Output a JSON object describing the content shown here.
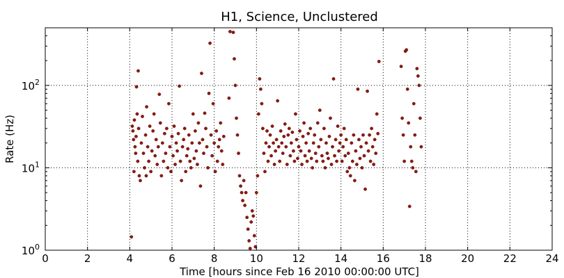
{
  "chart_data": {
    "type": "scatter",
    "title": "H1, Science, Unclustered",
    "xlabel": "Time [hours since Feb 16 2010 00:00:00 UTC]",
    "ylabel": "Rate (Hz)",
    "xlim": [
      0,
      24
    ],
    "ylim": [
      1,
      500
    ],
    "yscale": "log",
    "grid": true,
    "x_ticks": [
      0,
      2,
      4,
      6,
      8,
      10,
      12,
      14,
      16,
      18,
      20,
      22,
      24
    ],
    "x_tick_labels": [
      "0",
      "2",
      "4",
      "6",
      "8",
      "10",
      "12",
      "14",
      "16",
      "18",
      "20",
      "22",
      "24"
    ],
    "y_ticks": [
      1,
      10,
      100
    ],
    "y_tick_labels": [
      {
        "base": "10",
        "exp": "0"
      },
      {
        "base": "10",
        "exp": "1"
      },
      {
        "base": "10",
        "exp": "2"
      }
    ],
    "marker_color": "#8b1a10",
    "series": [
      {
        "points": [
          [
            4.08,
            1.45
          ],
          [
            4.12,
            32
          ],
          [
            4.15,
            28
          ],
          [
            4.18,
            22
          ],
          [
            4.2,
            9
          ],
          [
            4.22,
            38
          ],
          [
            4.25,
            18
          ],
          [
            4.28,
            15
          ],
          [
            4.3,
            24
          ],
          [
            4.32,
            96
          ],
          [
            4.35,
            45
          ],
          [
            4.38,
            12
          ],
          [
            4.4,
            150
          ],
          [
            4.42,
            30
          ],
          [
            4.45,
            8
          ],
          [
            4.5,
            7
          ],
          [
            4.55,
            20
          ],
          [
            4.6,
            42
          ],
          [
            4.65,
            15
          ],
          [
            4.7,
            10
          ],
          [
            4.75,
            25
          ],
          [
            4.78,
            8
          ],
          [
            4.8,
            55
          ],
          [
            4.85,
            18
          ],
          [
            4.9,
            12
          ],
          [
            4.95,
            32
          ],
          [
            5.0,
            9
          ],
          [
            5.05,
            16
          ],
          [
            5.1,
            28
          ],
          [
            5.15,
            45
          ],
          [
            5.2,
            14
          ],
          [
            5.25,
            22
          ],
          [
            5.3,
            11
          ],
          [
            5.35,
            18
          ],
          [
            5.4,
            78
          ],
          [
            5.45,
            35
          ],
          [
            5.5,
            8
          ],
          [
            5.55,
            20
          ],
          [
            5.6,
            12
          ],
          [
            5.65,
            26
          ],
          [
            5.7,
            15
          ],
          [
            5.75,
            30
          ],
          [
            5.8,
            10
          ],
          [
            5.85,
            60
          ],
          [
            5.9,
            18
          ],
          [
            5.95,
            9
          ],
          [
            6.0,
            24
          ],
          [
            6.05,
            14
          ],
          [
            6.1,
            32
          ],
          [
            6.15,
            11
          ],
          [
            6.2,
            20
          ],
          [
            6.25,
            16
          ],
          [
            6.3,
            26
          ],
          [
            6.35,
            98
          ],
          [
            6.4,
            12
          ],
          [
            6.45,
            7
          ],
          [
            6.5,
            18
          ],
          [
            6.55,
            22
          ],
          [
            6.6,
            30
          ],
          [
            6.65,
            9
          ],
          [
            6.7,
            14
          ],
          [
            6.75,
            17
          ],
          [
            6.8,
            25
          ],
          [
            6.85,
            12
          ],
          [
            6.9,
            10
          ],
          [
            6.95,
            20
          ],
          [
            7.0,
            45
          ],
          [
            7.05,
            13
          ],
          [
            7.1,
            28
          ],
          [
            7.15,
            16
          ],
          [
            7.2,
            11
          ],
          [
            7.25,
            35
          ],
          [
            7.3,
            20
          ],
          [
            7.35,
            6
          ],
          [
            7.4,
            140
          ],
          [
            7.45,
            22
          ],
          [
            7.5,
            15
          ],
          [
            7.55,
            46
          ],
          [
            7.6,
            30
          ],
          [
            7.65,
            18
          ],
          [
            7.7,
            10
          ],
          [
            7.75,
            80
          ],
          [
            7.8,
            325
          ],
          [
            7.85,
            25
          ],
          [
            7.9,
            14
          ],
          [
            7.95,
            60
          ],
          [
            8.0,
            20
          ],
          [
            8.05,
            9
          ],
          [
            8.1,
            28
          ],
          [
            8.15,
            12
          ],
          [
            8.2,
            18
          ],
          [
            8.25,
            22
          ],
          [
            8.3,
            35
          ],
          [
            8.35,
            16
          ],
          [
            8.4,
            11
          ],
          [
            8.45,
            24
          ],
          [
            8.7,
            70
          ],
          [
            8.75,
            450
          ],
          [
            8.9,
            440
          ],
          [
            8.95,
            210
          ],
          [
            9.0,
            100
          ],
          [
            9.05,
            40
          ],
          [
            9.1,
            25
          ],
          [
            9.15,
            15
          ],
          [
            9.2,
            8
          ],
          [
            9.25,
            6
          ],
          [
            9.3,
            5
          ],
          [
            9.35,
            4
          ],
          [
            9.4,
            7
          ],
          [
            9.45,
            3.5
          ],
          [
            9.5,
            5
          ],
          [
            9.55,
            2.5
          ],
          [
            9.6,
            1.8
          ],
          [
            9.65,
            1.3
          ],
          [
            9.7,
            1.05
          ],
          [
            9.75,
            2.2
          ],
          [
            9.8,
            3
          ],
          [
            9.85,
            2.6
          ],
          [
            9.9,
            1.5
          ],
          [
            9.95,
            1.1
          ],
          [
            10.0,
            5
          ],
          [
            10.05,
            8
          ],
          [
            10.1,
            45
          ],
          [
            10.15,
            120
          ],
          [
            10.2,
            90
          ],
          [
            10.25,
            60
          ],
          [
            10.3,
            30
          ],
          [
            10.35,
            15
          ],
          [
            10.4,
            9
          ],
          [
            10.45,
            20
          ],
          [
            10.5,
            28
          ],
          [
            10.55,
            12
          ],
          [
            10.6,
            18
          ],
          [
            10.65,
            25
          ],
          [
            10.7,
            14
          ],
          [
            10.75,
            32
          ],
          [
            10.8,
            20
          ],
          [
            10.85,
            11
          ],
          [
            10.9,
            16
          ],
          [
            10.95,
            22
          ],
          [
            11.0,
            65
          ],
          [
            11.05,
            18
          ],
          [
            11.1,
            12
          ],
          [
            11.15,
            28
          ],
          [
            11.2,
            20
          ],
          [
            11.25,
            15
          ],
          [
            11.3,
            24
          ],
          [
            11.35,
            34
          ],
          [
            11.4,
            18
          ],
          [
            11.45,
            11
          ],
          [
            11.5,
            25
          ],
          [
            11.55,
            30
          ],
          [
            11.6,
            14
          ],
          [
            11.65,
            20
          ],
          [
            11.7,
            27
          ],
          [
            11.75,
            16
          ],
          [
            11.8,
            12
          ],
          [
            11.85,
            45
          ],
          [
            11.9,
            22
          ],
          [
            11.95,
            13
          ],
          [
            12.0,
            18
          ],
          [
            12.05,
            28
          ],
          [
            12.1,
            16
          ],
          [
            12.15,
            11
          ],
          [
            12.2,
            24
          ],
          [
            12.25,
            35
          ],
          [
            12.3,
            14
          ],
          [
            12.35,
            20
          ],
          [
            12.4,
            12
          ],
          [
            12.45,
            26
          ],
          [
            12.5,
            16
          ],
          [
            12.55,
            30
          ],
          [
            12.6,
            13
          ],
          [
            12.65,
            10
          ],
          [
            12.7,
            20
          ],
          [
            12.75,
            25
          ],
          [
            12.8,
            15
          ],
          [
            12.85,
            12
          ],
          [
            12.9,
            35
          ],
          [
            12.95,
            18
          ],
          [
            13.0,
            50
          ],
          [
            13.05,
            22
          ],
          [
            13.1,
            14
          ],
          [
            13.15,
            12
          ],
          [
            13.2,
            30
          ],
          [
            13.25,
            10
          ],
          [
            13.3,
            20
          ],
          [
            13.35,
            15
          ],
          [
            13.4,
            13
          ],
          [
            13.45,
            24
          ],
          [
            13.5,
            40
          ],
          [
            13.55,
            11
          ],
          [
            13.6,
            18
          ],
          [
            13.65,
            120
          ],
          [
            13.7,
            14
          ],
          [
            13.75,
            22
          ],
          [
            13.8,
            12
          ],
          [
            13.85,
            32
          ],
          [
            13.9,
            16
          ],
          [
            13.95,
            20
          ],
          [
            14.0,
            25
          ],
          [
            14.05,
            12
          ],
          [
            14.1,
            18
          ],
          [
            14.15,
            30
          ],
          [
            14.2,
            14
          ],
          [
            14.25,
            22
          ],
          [
            14.3,
            9
          ],
          [
            14.35,
            15
          ],
          [
            14.4,
            10
          ],
          [
            14.45,
            8
          ],
          [
            14.5,
            20
          ],
          [
            14.55,
            12
          ],
          [
            14.6,
            25
          ],
          [
            14.65,
            7
          ],
          [
            14.7,
            16
          ],
          [
            14.75,
            11
          ],
          [
            14.8,
            90
          ],
          [
            14.85,
            22
          ],
          [
            14.9,
            13
          ],
          [
            14.95,
            18
          ],
          [
            15.0,
            10
          ],
          [
            15.05,
            25
          ],
          [
            15.1,
            14
          ],
          [
            15.15,
            5.5
          ],
          [
            15.2,
            20
          ],
          [
            15.25,
            85
          ],
          [
            15.3,
            16
          ],
          [
            15.35,
            25
          ],
          [
            15.4,
            12
          ],
          [
            15.45,
            30
          ],
          [
            15.5,
            18
          ],
          [
            15.55,
            11
          ],
          [
            15.6,
            22
          ],
          [
            15.65,
            15
          ],
          [
            15.7,
            45
          ],
          [
            15.75,
            26
          ],
          [
            15.8,
            195
          ],
          [
            16.85,
            170
          ],
          [
            16.9,
            40
          ],
          [
            16.95,
            25
          ],
          [
            17.0,
            12
          ],
          [
            17.05,
            260
          ],
          [
            17.1,
            270
          ],
          [
            17.15,
            90
          ],
          [
            17.2,
            35
          ],
          [
            17.25,
            3.4
          ],
          [
            17.3,
            18
          ],
          [
            17.35,
            12
          ],
          [
            17.4,
            10
          ],
          [
            17.45,
            60
          ],
          [
            17.5,
            25
          ],
          [
            17.55,
            9
          ],
          [
            17.6,
            160
          ],
          [
            17.65,
            130
          ],
          [
            17.7,
            100
          ],
          [
            17.75,
            40
          ],
          [
            17.8,
            18
          ]
        ]
      }
    ]
  }
}
